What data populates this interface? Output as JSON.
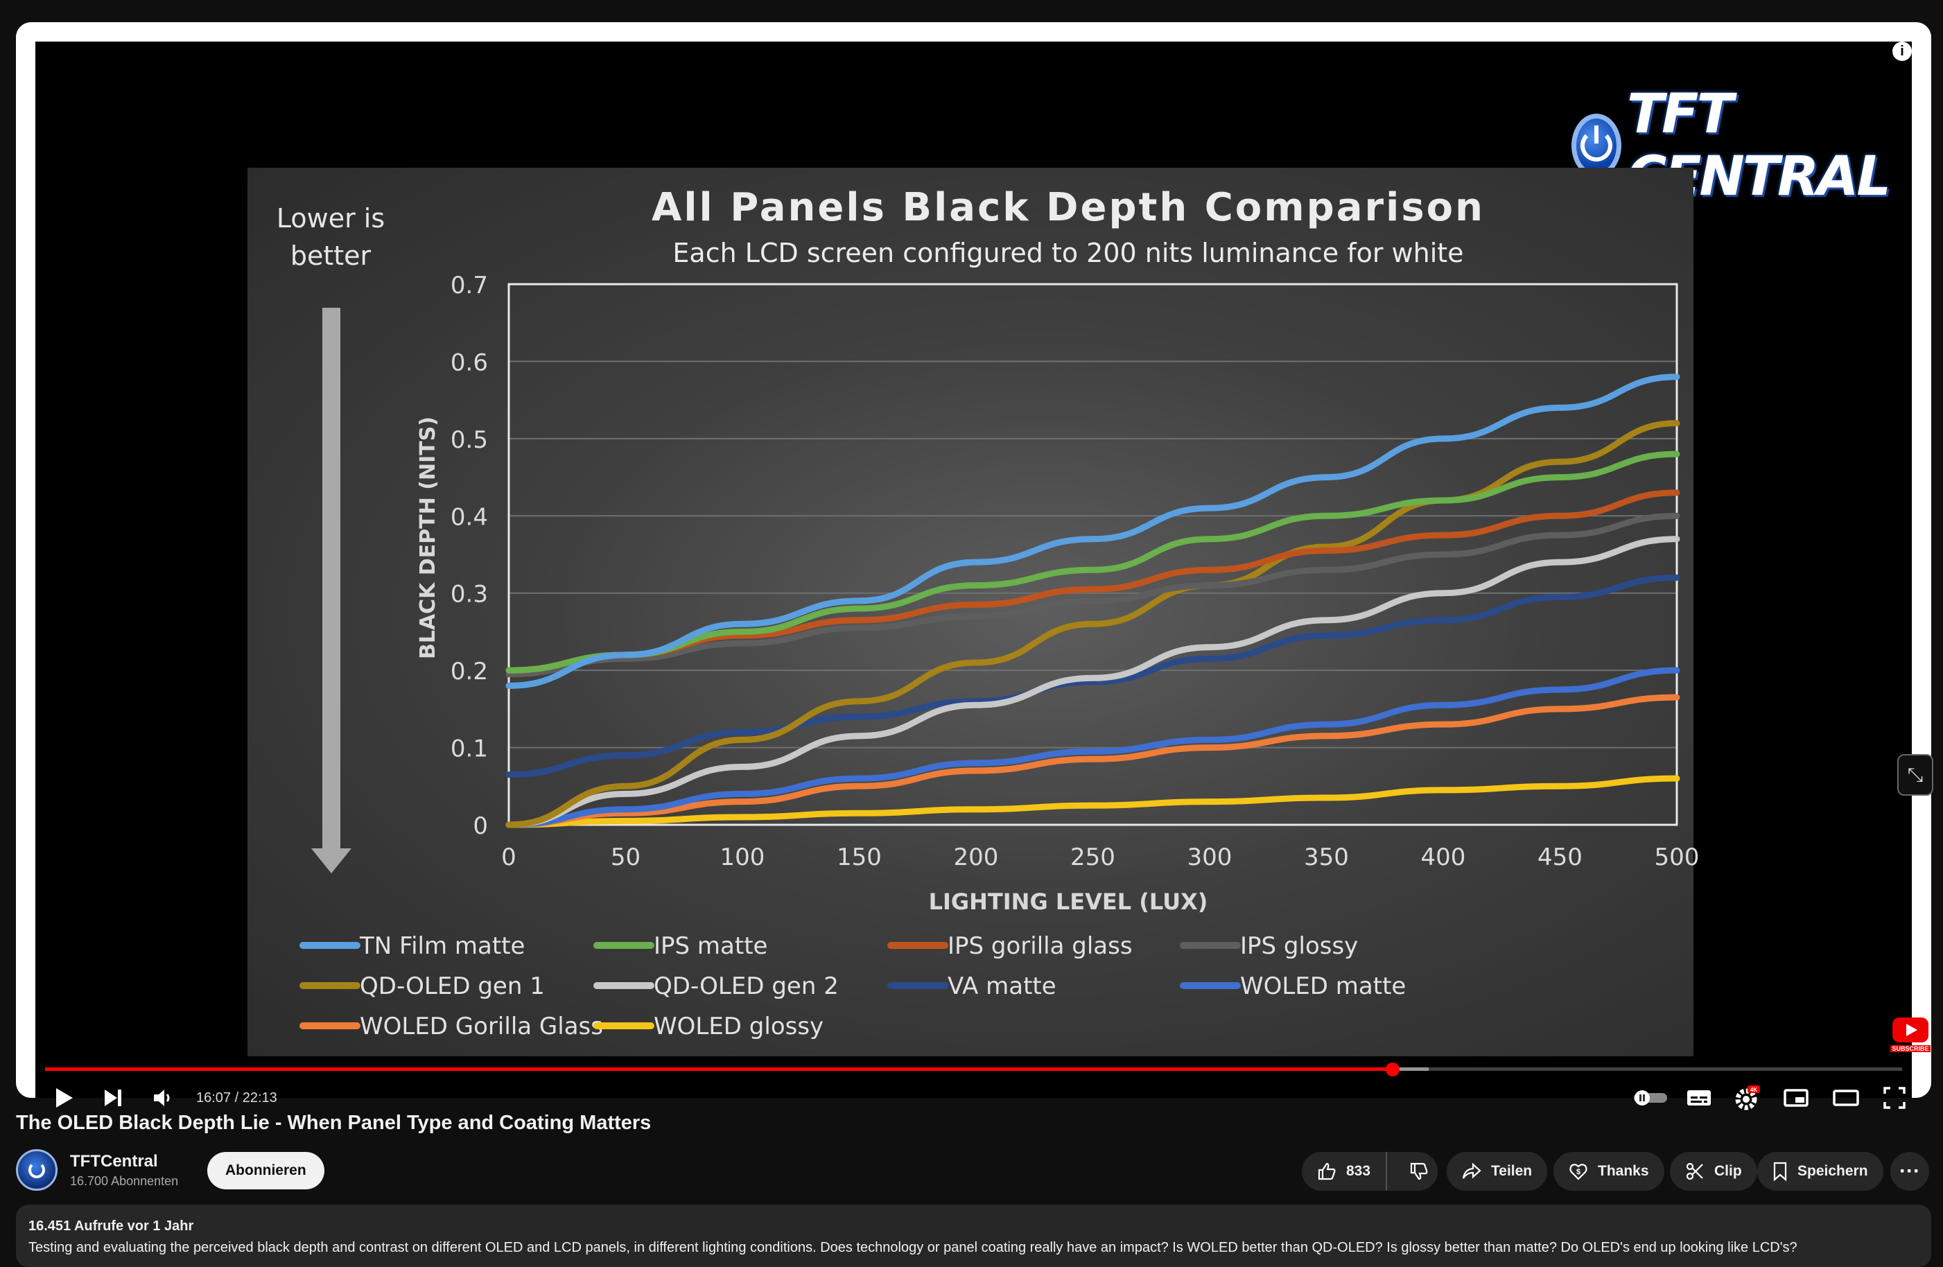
{
  "overlay": {
    "channel_logo_text": "TFT CENTRAL",
    "info_icon": "info-icon",
    "subscribe_badge_label": "SUBSCRIBE"
  },
  "slide": {
    "lower_is_better": [
      "Lower is",
      "better"
    ]
  },
  "chart_data": {
    "type": "line",
    "title": "All Panels Black Depth Comparison",
    "subtitle": "Each LCD screen configured to 200 nits luminance for white",
    "xlabel": "LIGHTING LEVEL (LUX)",
    "ylabel": "BLACK DEPTH (NITS)",
    "xlim": [
      0,
      500
    ],
    "ylim": [
      0,
      0.7
    ],
    "x_ticks": [
      "0",
      "50",
      "100",
      "150",
      "200",
      "250",
      "300",
      "350",
      "400",
      "450",
      "500"
    ],
    "y_ticks": [
      "0",
      "0.1",
      "0.2",
      "0.3",
      "0.4",
      "0.5",
      "0.6",
      "0.7"
    ],
    "grid": "horizontal",
    "legend_position": "bottom",
    "x": [
      0,
      50,
      100,
      150,
      200,
      250,
      300,
      350,
      400,
      450,
      500
    ],
    "series": [
      {
        "name": "TN Film matte",
        "color": "#5aa0e0",
        "values": [
          0.18,
          0.22,
          0.26,
          0.29,
          0.34,
          0.37,
          0.41,
          0.45,
          0.5,
          0.54,
          0.58
        ]
      },
      {
        "name": "IPS matte",
        "color": "#6ab04c",
        "values": [
          0.2,
          0.22,
          0.25,
          0.28,
          0.31,
          0.33,
          0.37,
          0.4,
          0.42,
          0.45,
          0.48
        ]
      },
      {
        "name": "IPS gorilla glass",
        "color": "#c0541e",
        "values": [
          0.2,
          0.22,
          0.245,
          0.265,
          0.285,
          0.305,
          0.33,
          0.355,
          0.375,
          0.4,
          0.43
        ]
      },
      {
        "name": "IPS glossy",
        "color": "#5e5e5e",
        "values": [
          0.195,
          0.215,
          0.235,
          0.255,
          0.27,
          0.29,
          0.31,
          0.33,
          0.35,
          0.375,
          0.4
        ]
      },
      {
        "name": "QD-OLED gen 1",
        "color": "#a68318",
        "values": [
          0.0,
          0.05,
          0.11,
          0.16,
          0.21,
          0.26,
          0.31,
          0.36,
          0.42,
          0.47,
          0.52
        ]
      },
      {
        "name": "QD-OLED gen 2",
        "color": "#c8c8c8",
        "values": [
          0.0,
          0.04,
          0.075,
          0.115,
          0.155,
          0.19,
          0.23,
          0.265,
          0.3,
          0.34,
          0.37
        ]
      },
      {
        "name": "VA matte",
        "color": "#2b4a8a",
        "values": [
          0.065,
          0.09,
          0.12,
          0.14,
          0.16,
          0.185,
          0.215,
          0.245,
          0.265,
          0.295,
          0.32
        ]
      },
      {
        "name": "WOLED matte",
        "color": "#3f6fd0",
        "values": [
          0.0,
          0.02,
          0.04,
          0.06,
          0.08,
          0.095,
          0.11,
          0.13,
          0.155,
          0.175,
          0.2
        ]
      },
      {
        "name": "WOLED Gorilla Glass",
        "color": "#ee7d3a",
        "values": [
          0.0,
          0.015,
          0.03,
          0.05,
          0.07,
          0.085,
          0.1,
          0.115,
          0.13,
          0.15,
          0.165
        ]
      },
      {
        "name": "WOLED glossy",
        "color": "#f5c518",
        "values": [
          0.0,
          0.005,
          0.01,
          0.015,
          0.02,
          0.025,
          0.03,
          0.035,
          0.045,
          0.05,
          0.06
        ]
      }
    ]
  },
  "player": {
    "time_display": "16:07 / 22:13",
    "progress_fraction": 0.7256,
    "buffer_fraction": 0.745,
    "icons": {
      "play": "play-icon",
      "next": "next-icon",
      "volume": "volume-icon",
      "autoplay": "autoplay-toggle-icon",
      "subtitles": "subtitles-icon",
      "settings": "settings-icon",
      "miniplayer": "miniplayer-icon",
      "theater": "theater-mode-icon",
      "fullscreen": "fullscreen-icon"
    },
    "settings_badge": "4K"
  },
  "video": {
    "title": "The OLED Black Depth Lie - When Panel Type and Coating Matters"
  },
  "channel": {
    "name": "TFTCentral",
    "subscribers": "16.700 Abonnenten",
    "subscribe_label": "Abonnieren"
  },
  "actions": {
    "like_count": "833",
    "share_label": "Teilen",
    "thanks_label": "Thanks",
    "clip_label": "Clip",
    "save_label": "Speichern"
  },
  "description": {
    "meta": "16.451 Aufrufe  vor 1 Jahr",
    "text": "Testing and evaluating the perceived black depth and contrast on different OLED and LCD panels, in different lighting conditions. Does technology or panel coating really have an impact? Is WOLED better than QD-OLED? Is glossy better than matte? Do OLED's end up looking like LCD's?"
  }
}
